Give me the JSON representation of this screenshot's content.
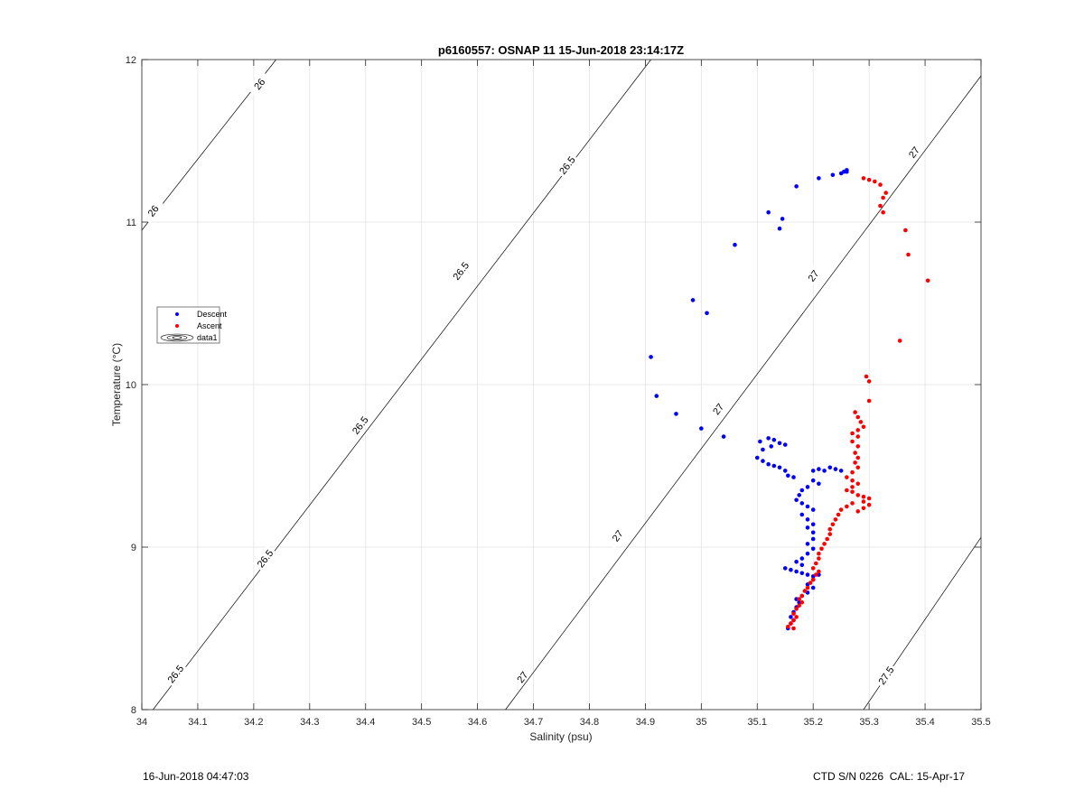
{
  "chart_data": {
    "type": "scatter",
    "title": "p6160557: OSNAP 11 15-Jun-2018 23:14:17Z",
    "xlabel": "Salinity (psu)",
    "ylabel": "Temperature (°C)",
    "xlim": [
      34,
      35.5
    ],
    "ylim": [
      8,
      12
    ],
    "xticks": [
      "34",
      "34.1",
      "34.2",
      "34.3",
      "34.4",
      "34.5",
      "34.6",
      "34.7",
      "34.8",
      "34.9",
      "35",
      "35.1",
      "35.2",
      "35.3",
      "35.4",
      "35.5"
    ],
    "yticks": [
      "8",
      "9",
      "10",
      "11",
      "12"
    ],
    "grid": true,
    "legend_placement": "middle-left",
    "legend": [
      {
        "label": "Descent",
        "color": "#0000ff"
      },
      {
        "label": "Ascent",
        "color": "#ff0000"
      },
      {
        "label": "data1"
      }
    ],
    "contours": [
      {
        "label": "26",
        "points": [
          [
            34.0,
            10.95
          ],
          [
            34.24,
            12.0
          ]
        ],
        "labels_at": [
          [
            34.02,
            11.07
          ],
          [
            34.21,
            11.85
          ]
        ]
      },
      {
        "label": "26.5",
        "points": [
          [
            34.02,
            8.0
          ],
          [
            34.91,
            12.0
          ]
        ],
        "labels_at": [
          [
            34.06,
            8.22
          ],
          [
            34.22,
            8.93
          ],
          [
            34.39,
            9.75
          ],
          [
            34.57,
            10.7
          ],
          [
            34.76,
            11.35
          ]
        ]
      },
      {
        "label": "27",
        "points": [
          [
            34.65,
            8.0
          ],
          [
            35.5,
            11.9
          ]
        ],
        "labels_at": [
          [
            34.68,
            8.2
          ],
          [
            34.85,
            9.07
          ],
          [
            35.03,
            9.85
          ],
          [
            35.2,
            10.67
          ],
          [
            35.38,
            11.43
          ]
        ]
      },
      {
        "label": "27.5",
        "points": [
          [
            35.29,
            8.0
          ],
          [
            35.5,
            9.06
          ]
        ],
        "labels_at": [
          [
            35.33,
            8.21
          ]
        ]
      }
    ],
    "series": [
      {
        "name": "Descent",
        "color": "#0000ff",
        "points": [
          [
            35.26,
            11.32
          ],
          [
            35.255,
            11.31
          ],
          [
            35.25,
            11.3
          ],
          [
            35.26,
            11.31
          ],
          [
            35.235,
            11.29
          ],
          [
            35.21,
            11.27
          ],
          [
            35.17,
            11.22
          ],
          [
            35.12,
            11.06
          ],
          [
            35.145,
            11.02
          ],
          [
            35.14,
            10.96
          ],
          [
            35.06,
            10.86
          ],
          [
            34.985,
            10.52
          ],
          [
            35.01,
            10.44
          ],
          [
            34.91,
            10.17
          ],
          [
            34.92,
            9.93
          ],
          [
            34.955,
            9.82
          ],
          [
            35.0,
            9.73
          ],
          [
            35.04,
            9.68
          ],
          [
            35.12,
            9.67
          ],
          [
            35.13,
            9.66
          ],
          [
            35.14,
            9.64
          ],
          [
            35.15,
            9.63
          ],
          [
            35.105,
            9.65
          ],
          [
            35.11,
            9.6
          ],
          [
            35.125,
            9.62
          ],
          [
            35.1,
            9.55
          ],
          [
            35.11,
            9.53
          ],
          [
            35.12,
            9.51
          ],
          [
            35.13,
            9.5
          ],
          [
            35.14,
            9.49
          ],
          [
            35.15,
            9.47
          ],
          [
            35.155,
            9.44
          ],
          [
            35.165,
            9.43
          ],
          [
            35.2,
            9.47
          ],
          [
            35.21,
            9.48
          ],
          [
            35.22,
            9.47
          ],
          [
            35.23,
            9.49
          ],
          [
            35.24,
            9.48
          ],
          [
            35.25,
            9.47
          ],
          [
            35.2,
            9.41
          ],
          [
            35.21,
            9.39
          ],
          [
            35.19,
            9.37
          ],
          [
            35.18,
            9.35
          ],
          [
            35.175,
            9.32
          ],
          [
            35.17,
            9.29
          ],
          [
            35.18,
            9.27
          ],
          [
            35.19,
            9.25
          ],
          [
            35.2,
            9.23
          ],
          [
            35.18,
            9.2
          ],
          [
            35.19,
            9.17
          ],
          [
            35.2,
            9.14
          ],
          [
            35.19,
            9.12
          ],
          [
            35.2,
            9.09
          ],
          [
            35.2,
            9.05
          ],
          [
            35.19,
            9.02
          ],
          [
            35.2,
            8.99
          ],
          [
            35.19,
            8.96
          ],
          [
            35.18,
            8.93
          ],
          [
            35.17,
            8.91
          ],
          [
            35.18,
            8.89
          ],
          [
            35.15,
            8.87
          ],
          [
            35.16,
            8.86
          ],
          [
            35.17,
            8.85
          ],
          [
            35.18,
            8.84
          ],
          [
            35.19,
            8.83
          ],
          [
            35.2,
            8.82
          ],
          [
            35.21,
            8.83
          ],
          [
            35.2,
            8.8
          ],
          [
            35.19,
            8.77
          ],
          [
            35.2,
            8.75
          ],
          [
            35.19,
            8.72
          ],
          [
            35.18,
            8.7
          ],
          [
            35.17,
            8.68
          ],
          [
            35.175,
            8.66
          ],
          [
            35.17,
            8.63
          ],
          [
            35.165,
            8.6
          ],
          [
            35.16,
            8.57
          ],
          [
            35.165,
            8.55
          ],
          [
            35.16,
            8.53
          ],
          [
            35.155,
            8.5
          ]
        ]
      },
      {
        "name": "Ascent",
        "color": "#ff0000",
        "points": [
          [
            35.29,
            11.27
          ],
          [
            35.3,
            11.26
          ],
          [
            35.31,
            11.25
          ],
          [
            35.32,
            11.23
          ],
          [
            35.33,
            11.18
          ],
          [
            35.325,
            11.15
          ],
          [
            35.32,
            11.1
          ],
          [
            35.325,
            11.06
          ],
          [
            35.365,
            10.95
          ],
          [
            35.37,
            10.8
          ],
          [
            35.405,
            10.64
          ],
          [
            35.355,
            10.27
          ],
          [
            35.295,
            10.05
          ],
          [
            35.3,
            10.02
          ],
          [
            35.3,
            9.9
          ],
          [
            35.275,
            9.83
          ],
          [
            35.28,
            9.8
          ],
          [
            35.285,
            9.77
          ],
          [
            35.29,
            9.74
          ],
          [
            35.28,
            9.72
          ],
          [
            35.27,
            9.7
          ],
          [
            35.28,
            9.68
          ],
          [
            35.27,
            9.65
          ],
          [
            35.28,
            9.62
          ],
          [
            35.275,
            9.58
          ],
          [
            35.28,
            9.55
          ],
          [
            35.275,
            9.52
          ],
          [
            35.28,
            9.49
          ],
          [
            35.27,
            9.46
          ],
          [
            35.26,
            9.43
          ],
          [
            35.27,
            9.41
          ],
          [
            35.28,
            9.39
          ],
          [
            35.27,
            9.37
          ],
          [
            35.26,
            9.35
          ],
          [
            35.27,
            9.34
          ],
          [
            35.28,
            9.32
          ],
          [
            35.29,
            9.31
          ],
          [
            35.3,
            9.3
          ],
          [
            35.29,
            9.28
          ],
          [
            35.3,
            9.26
          ],
          [
            35.29,
            9.24
          ],
          [
            35.28,
            9.22
          ],
          [
            35.27,
            9.27
          ],
          [
            35.26,
            9.25
          ],
          [
            35.25,
            9.23
          ],
          [
            35.245,
            9.2
          ],
          [
            35.24,
            9.17
          ],
          [
            35.235,
            9.14
          ],
          [
            35.23,
            9.11
          ],
          [
            35.23,
            9.08
          ],
          [
            35.225,
            9.05
          ],
          [
            35.22,
            9.02
          ],
          [
            35.215,
            8.99
          ],
          [
            35.21,
            8.96
          ],
          [
            35.21,
            8.93
          ],
          [
            35.205,
            8.9
          ],
          [
            35.2,
            8.87
          ],
          [
            35.21,
            8.85
          ],
          [
            35.205,
            8.83
          ],
          [
            35.2,
            8.8
          ],
          [
            35.195,
            8.78
          ],
          [
            35.19,
            8.75
          ],
          [
            35.185,
            8.73
          ],
          [
            35.18,
            8.7
          ],
          [
            35.175,
            8.68
          ],
          [
            35.18,
            8.66
          ],
          [
            35.175,
            8.64
          ],
          [
            35.17,
            8.62
          ],
          [
            35.165,
            8.59
          ],
          [
            35.17,
            8.57
          ],
          [
            35.165,
            8.55
          ],
          [
            35.16,
            8.53
          ],
          [
            35.155,
            8.51
          ],
          [
            35.165,
            8.5
          ]
        ]
      }
    ]
  },
  "footer": {
    "timestamp": "16-Jun-2018 04:47:03",
    "calibration": "CTD S/N 0226  CAL: 15-Apr-17"
  }
}
